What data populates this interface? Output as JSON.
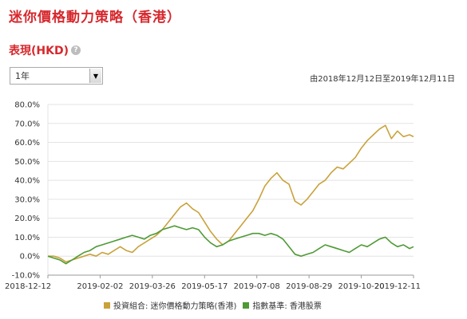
{
  "header": {
    "title": "迷你價格動力策略（香港）",
    "subtitle": "表現(HKD)",
    "help_icon": "help-icon",
    "period_select": "1年",
    "date_range": "由2018年12月12日至2019年12月11日"
  },
  "colors": {
    "portfolio": "#c9a23c",
    "benchmark": "#4e9a35",
    "title": "#d6282d"
  },
  "chart_data": {
    "type": "line",
    "y_ticks": [
      "80.0%",
      "70.0%",
      "60.0%",
      "50.0%",
      "40.0%",
      "30.0%",
      "20.0%",
      "10.0%",
      "0.0%",
      "-10.0%"
    ],
    "x_ticks": [
      "2018-12-12",
      "2019-02-02",
      "2019-03-26",
      "2019-05-17",
      "2019-07-08",
      "2019-08-29",
      "2019-10-20",
      "2019-12-11"
    ],
    "ylim": [
      -10,
      80
    ],
    "xlim": [
      "2018-12-12",
      "2019-12-11"
    ],
    "grid": true,
    "legend_position": "bottom",
    "series": [
      {
        "name": "投資組合: 迷你價格動力策略(香港)",
        "points": [
          [
            "2018-12-12",
            0
          ],
          [
            "2018-12-18",
            0
          ],
          [
            "2018-12-24",
            -1
          ],
          [
            "2018-12-30",
            -3
          ],
          [
            "2019-01-05",
            -2
          ],
          [
            "2019-01-11",
            -1
          ],
          [
            "2019-01-17",
            0
          ],
          [
            "2019-01-23",
            1
          ],
          [
            "2019-01-29",
            0
          ],
          [
            "2019-02-04",
            2
          ],
          [
            "2019-02-10",
            1
          ],
          [
            "2019-02-16",
            3
          ],
          [
            "2019-02-22",
            5
          ],
          [
            "2019-02-28",
            3
          ],
          [
            "2019-03-06",
            2
          ],
          [
            "2019-03-12",
            5
          ],
          [
            "2019-03-18",
            7
          ],
          [
            "2019-03-24",
            9
          ],
          [
            "2019-03-30",
            11
          ],
          [
            "2019-04-05",
            14
          ],
          [
            "2019-04-11",
            18
          ],
          [
            "2019-04-17",
            22
          ],
          [
            "2019-04-23",
            26
          ],
          [
            "2019-04-29",
            28
          ],
          [
            "2019-05-05",
            25
          ],
          [
            "2019-05-11",
            23
          ],
          [
            "2019-05-17",
            18
          ],
          [
            "2019-05-23",
            13
          ],
          [
            "2019-05-29",
            9
          ],
          [
            "2019-06-04",
            6
          ],
          [
            "2019-06-10",
            8
          ],
          [
            "2019-06-16",
            12
          ],
          [
            "2019-06-22",
            16
          ],
          [
            "2019-06-28",
            20
          ],
          [
            "2019-07-04",
            24
          ],
          [
            "2019-07-10",
            30
          ],
          [
            "2019-07-16",
            37
          ],
          [
            "2019-07-22",
            41
          ],
          [
            "2019-07-28",
            44
          ],
          [
            "2019-08-03",
            40
          ],
          [
            "2019-08-09",
            38
          ],
          [
            "2019-08-15",
            29
          ],
          [
            "2019-08-21",
            27
          ],
          [
            "2019-08-27",
            30
          ],
          [
            "2019-09-02",
            34
          ],
          [
            "2019-09-08",
            38
          ],
          [
            "2019-09-14",
            40
          ],
          [
            "2019-09-20",
            44
          ],
          [
            "2019-09-26",
            47
          ],
          [
            "2019-10-02",
            46
          ],
          [
            "2019-10-08",
            49
          ],
          [
            "2019-10-14",
            52
          ],
          [
            "2019-10-20",
            57
          ],
          [
            "2019-10-26",
            61
          ],
          [
            "2019-11-01",
            64
          ],
          [
            "2019-11-07",
            67
          ],
          [
            "2019-11-13",
            69
          ],
          [
            "2019-11-19",
            62
          ],
          [
            "2019-11-25",
            66
          ],
          [
            "2019-12-01",
            63
          ],
          [
            "2019-12-07",
            64
          ],
          [
            "2019-12-11",
            63
          ]
        ]
      },
      {
        "name": "指數基準: 香港股票",
        "points": [
          [
            "2018-12-12",
            0
          ],
          [
            "2018-12-18",
            -1
          ],
          [
            "2018-12-24",
            -2
          ],
          [
            "2018-12-30",
            -4
          ],
          [
            "2019-01-05",
            -2
          ],
          [
            "2019-01-11",
            0
          ],
          [
            "2019-01-17",
            2
          ],
          [
            "2019-01-23",
            3
          ],
          [
            "2019-01-29",
            5
          ],
          [
            "2019-02-04",
            6
          ],
          [
            "2019-02-10",
            7
          ],
          [
            "2019-02-16",
            8
          ],
          [
            "2019-02-22",
            9
          ],
          [
            "2019-02-28",
            10
          ],
          [
            "2019-03-06",
            11
          ],
          [
            "2019-03-12",
            10
          ],
          [
            "2019-03-18",
            9
          ],
          [
            "2019-03-24",
            11
          ],
          [
            "2019-03-30",
            12
          ],
          [
            "2019-04-05",
            14
          ],
          [
            "2019-04-11",
            15
          ],
          [
            "2019-04-17",
            16
          ],
          [
            "2019-04-23",
            15
          ],
          [
            "2019-04-29",
            14
          ],
          [
            "2019-05-05",
            15
          ],
          [
            "2019-05-11",
            14
          ],
          [
            "2019-05-17",
            10
          ],
          [
            "2019-05-23",
            7
          ],
          [
            "2019-05-29",
            5
          ],
          [
            "2019-06-04",
            6
          ],
          [
            "2019-06-10",
            8
          ],
          [
            "2019-06-16",
            9
          ],
          [
            "2019-06-22",
            10
          ],
          [
            "2019-06-28",
            11
          ],
          [
            "2019-07-04",
            12
          ],
          [
            "2019-07-10",
            12
          ],
          [
            "2019-07-16",
            11
          ],
          [
            "2019-07-22",
            12
          ],
          [
            "2019-07-28",
            11
          ],
          [
            "2019-08-03",
            9
          ],
          [
            "2019-08-09",
            5
          ],
          [
            "2019-08-15",
            1
          ],
          [
            "2019-08-21",
            0
          ],
          [
            "2019-08-27",
            1
          ],
          [
            "2019-09-02",
            2
          ],
          [
            "2019-09-08",
            4
          ],
          [
            "2019-09-14",
            6
          ],
          [
            "2019-09-20",
            5
          ],
          [
            "2019-09-26",
            4
          ],
          [
            "2019-10-02",
            3
          ],
          [
            "2019-10-08",
            2
          ],
          [
            "2019-10-14",
            4
          ],
          [
            "2019-10-20",
            6
          ],
          [
            "2019-10-26",
            5
          ],
          [
            "2019-11-01",
            7
          ],
          [
            "2019-11-07",
            9
          ],
          [
            "2019-11-13",
            10
          ],
          [
            "2019-11-19",
            7
          ],
          [
            "2019-11-25",
            5
          ],
          [
            "2019-12-01",
            6
          ],
          [
            "2019-12-07",
            4
          ],
          [
            "2019-12-11",
            5
          ]
        ]
      }
    ]
  }
}
